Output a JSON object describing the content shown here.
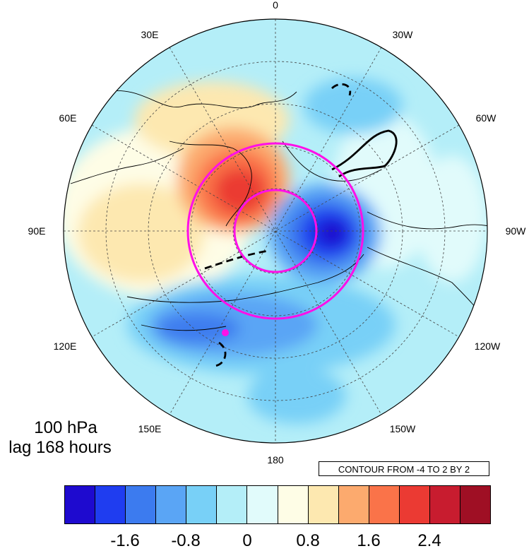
{
  "map": {
    "projection": "north-polar-stereographic",
    "lon_labels": [
      "0",
      "30W",
      "60W",
      "90W",
      "120W",
      "150W",
      "180",
      "150E",
      "120E",
      "90E",
      "60E",
      "30E"
    ],
    "fill_colors": [
      "#1e0acf",
      "#1f3df0",
      "#3c7bef",
      "#5aa5f5",
      "#78d0f7",
      "#b4eef8",
      "#e1fbfb",
      "#fefde6",
      "#fde8b0",
      "#fcaa6e",
      "#fa7349",
      "#eb3a33",
      "#c81c2f",
      "#9f0f24"
    ],
    "contour_line_color": "#000000",
    "circle_color": "#ff10e8",
    "marker_color": "#ff10e8"
  },
  "labels": {
    "level": "100 hPa",
    "lag": "lag 168 hours",
    "contour_info": "CONTOUR FROM -4 TO 2 BY 2"
  },
  "colorbar": {
    "colors": [
      "#1e0acf",
      "#1f3df0",
      "#3c7bef",
      "#5aa5f5",
      "#78d0f7",
      "#b4eef8",
      "#e1fbfb",
      "#fefde6",
      "#fde8b0",
      "#fcaa6e",
      "#fa7349",
      "#eb3a33",
      "#c81c2f",
      "#9f0f24"
    ],
    "tick_labels": [
      "-1.6",
      "-0.8",
      "0",
      "0.8",
      "1.6",
      "2.4"
    ]
  }
}
